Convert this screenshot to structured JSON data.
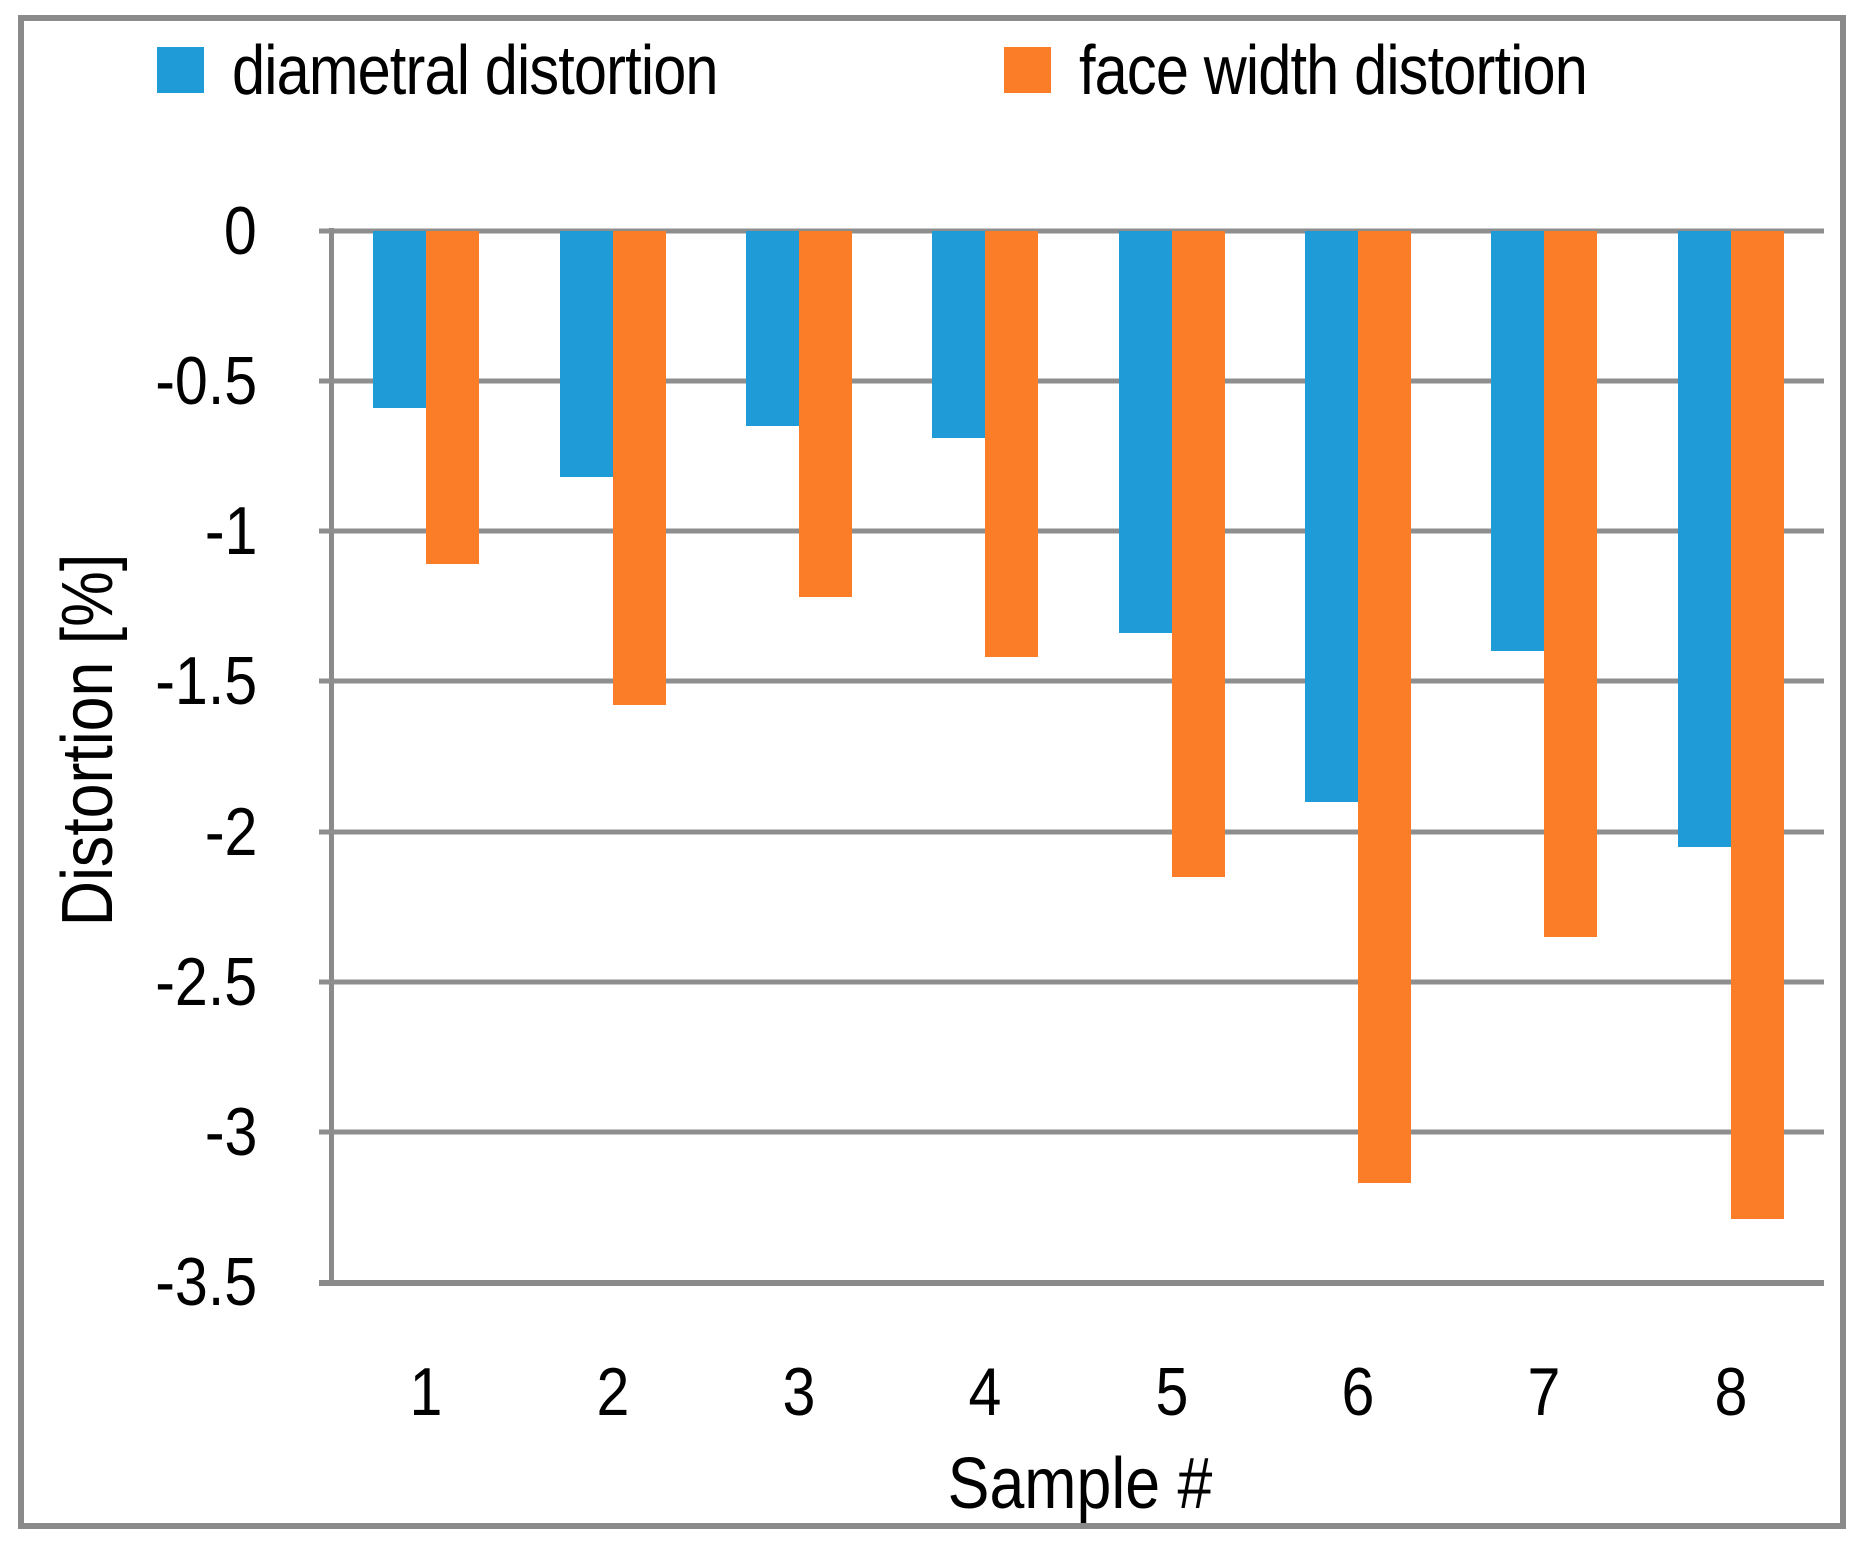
{
  "colors": {
    "series_blue": "#1f9bd7",
    "series_orange": "#fb7d27",
    "gridline": "#8e8e8e",
    "axis": "#8a8a8a",
    "figure_border": "#8a8a8a",
    "text": "#000000"
  },
  "legend": {
    "items": [
      {
        "label": "diametral distortion",
        "color": "#1f9bd7"
      },
      {
        "label": "face width distortion",
        "color": "#fb7d27"
      }
    ]
  },
  "chart_data": {
    "type": "bar",
    "title": "",
    "xlabel": "Sample #",
    "ylabel": "Distortion [%]",
    "categories": [
      "1",
      "2",
      "3",
      "4",
      "5",
      "6",
      "7",
      "8"
    ],
    "series": [
      {
        "name": "diametral distortion",
        "color": "#1f9bd7",
        "values": [
          -0.59,
          -0.82,
          -0.65,
          -0.69,
          -1.34,
          -1.9,
          -1.4,
          -2.05
        ]
      },
      {
        "name": "face width distortion",
        "color": "#fb7d27",
        "values": [
          -1.11,
          -1.58,
          -1.22,
          -1.42,
          -2.15,
          -3.17,
          -2.35,
          -3.29
        ]
      }
    ],
    "ylim": [
      -3.5,
      0
    ],
    "yticks": [
      {
        "label": "0",
        "value": 0
      },
      {
        "label": "-0.5",
        "value": -0.5
      },
      {
        "label": "-1",
        "value": -1
      },
      {
        "label": "-1.5",
        "value": -1.5
      },
      {
        "label": "-2",
        "value": -2
      },
      {
        "label": "-2.5",
        "value": -2.5
      },
      {
        "label": "-3",
        "value": -3
      },
      {
        "label": "-3.5",
        "value": -3.5
      }
    ],
    "grid": true,
    "legend_position": "top"
  }
}
